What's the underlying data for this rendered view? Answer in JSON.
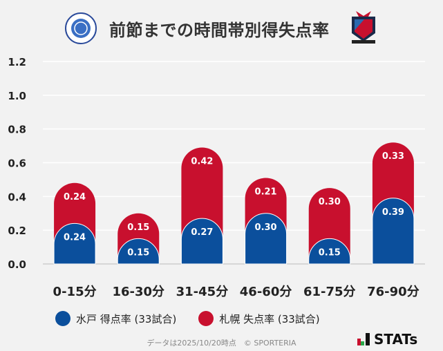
{
  "header": {
    "title": "前節までの時間帯別得失点率",
    "home_logo": "mito-hollyhock-logo",
    "away_logo": "consadole-sapporo-logo"
  },
  "colors": {
    "mito": "#0b4f9c",
    "sapporo": "#c8102e",
    "grid": "#ffffff"
  },
  "chart_data": {
    "type": "bar",
    "stacked": true,
    "categories": [
      "0-15分",
      "16-30分",
      "31-45分",
      "46-60分",
      "61-75分",
      "76-90分"
    ],
    "series": [
      {
        "name": "水戸 得点率 (33試合)",
        "values": [
          0.24,
          0.15,
          0.27,
          0.3,
          0.15,
          0.39
        ],
        "labels": [
          "0.24",
          "0.15",
          "0.27",
          "0.30",
          "0.15",
          "0.39"
        ]
      },
      {
        "name": "札幌 失点率 (33試合)",
        "values": [
          0.24,
          0.15,
          0.42,
          0.21,
          0.3,
          0.33
        ],
        "labels": [
          "0.24",
          "0.15",
          "0.42",
          "0.21",
          "0.30",
          "0.33"
        ]
      }
    ],
    "ylim": [
      0,
      1.2
    ],
    "yticks": [
      "0.0",
      "0.2",
      "0.4",
      "0.6",
      "0.8",
      "1.0",
      "1.2"
    ],
    "grid": true,
    "legend": "bottom"
  },
  "footer": {
    "note": "データは2025/10/20時点　© SPORTERIA",
    "brand": "STATs"
  }
}
